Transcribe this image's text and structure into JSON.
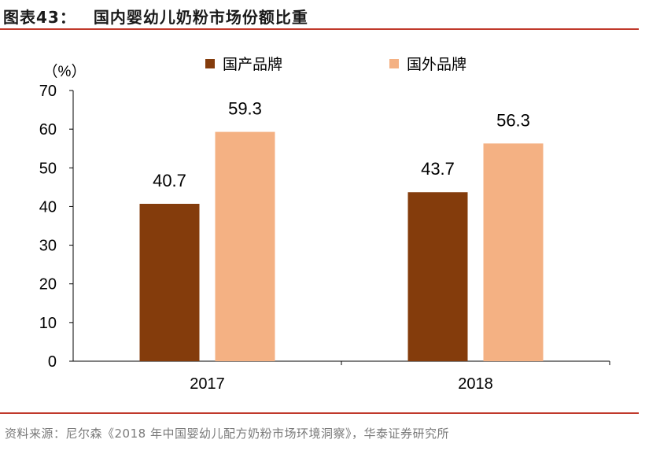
{
  "figure": {
    "number": "图表43：",
    "title": "国内婴幼儿奶粉市场份额比重",
    "source": "资料来源：尼尔森《2018 年中国婴幼儿配方奶粉市场环境洞察》，华泰证券研究所"
  },
  "chart_data": {
    "type": "bar",
    "categories": [
      "2017",
      "2018"
    ],
    "series": [
      {
        "name": "国产品牌",
        "values": [
          40.7,
          43.7
        ],
        "color": "#843c0c"
      },
      {
        "name": "国外品牌",
        "values": [
          59.3,
          56.3
        ],
        "color": "#f4b183"
      }
    ],
    "unit": "（%）",
    "ylim": [
      0,
      70
    ],
    "yticks": [
      "0",
      "10",
      "20",
      "30",
      "40",
      "50",
      "60",
      "70"
    ],
    "data_labels": [
      [
        "40.7",
        "43.7"
      ],
      [
        "59.3",
        "56.3"
      ]
    ],
    "legend_position": "top",
    "grid": false
  }
}
